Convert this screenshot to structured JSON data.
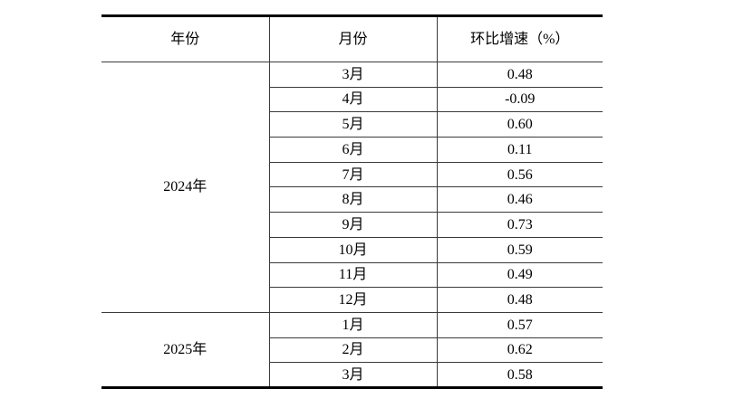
{
  "page": {
    "background": "#ffffff",
    "text_color": "#000000"
  },
  "table": {
    "columns": [
      {
        "key": "year",
        "label": "年份"
      },
      {
        "key": "month",
        "label": "月份"
      },
      {
        "key": "growth",
        "label": "环比增速（%）"
      }
    ],
    "groups": [
      {
        "year": "2024年",
        "rows": [
          {
            "month": "3月",
            "value": "0.48"
          },
          {
            "month": "4月",
            "value": "-0.09"
          },
          {
            "month": "5月",
            "value": "0.60"
          },
          {
            "month": "6月",
            "value": "0.11"
          },
          {
            "month": "7月",
            "value": "0.56"
          },
          {
            "month": "8月",
            "value": "0.46"
          },
          {
            "month": "9月",
            "value": "0.73"
          },
          {
            "month": "10月",
            "value": "0.59"
          },
          {
            "month": "11月",
            "value": "0.49"
          },
          {
            "month": "12月",
            "value": "0.48"
          }
        ]
      },
      {
        "year": "2025年",
        "rows": [
          {
            "month": "1月",
            "value": "0.57"
          },
          {
            "month": "2月",
            "value": "0.62"
          },
          {
            "month": "3月",
            "value": "0.58"
          }
        ]
      }
    ]
  },
  "chart_data": {
    "type": "table",
    "columns": [
      "年份",
      "月份",
      "环比增速（%）"
    ],
    "rows": [
      [
        "2024年",
        "3月",
        0.48
      ],
      [
        "2024年",
        "4月",
        -0.09
      ],
      [
        "2024年",
        "5月",
        0.6
      ],
      [
        "2024年",
        "6月",
        0.11
      ],
      [
        "2024年",
        "7月",
        0.56
      ],
      [
        "2024年",
        "8月",
        0.46
      ],
      [
        "2024年",
        "9月",
        0.73
      ],
      [
        "2024年",
        "10月",
        0.59
      ],
      [
        "2024年",
        "11月",
        0.49
      ],
      [
        "2024年",
        "12月",
        0.48
      ],
      [
        "2025年",
        "1月",
        0.57
      ],
      [
        "2025年",
        "2月",
        0.62
      ],
      [
        "2025年",
        "3月",
        0.58
      ]
    ]
  }
}
